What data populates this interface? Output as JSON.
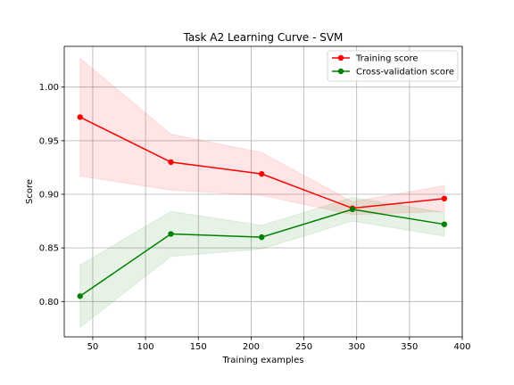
{
  "chart_data": {
    "type": "line",
    "title": "Task A2 Learning Curve - SVM",
    "xlabel": "Training examples",
    "ylabel": "Score",
    "xlim": [
      23,
      400
    ],
    "ylim": [
      0.767,
      1.038
    ],
    "xticks": [
      50,
      100,
      150,
      200,
      250,
      300,
      350,
      400
    ],
    "yticks": [
      0.8,
      0.85,
      0.9,
      0.95,
      1.0
    ],
    "grid": true,
    "legend_position": "top-right",
    "x": [
      38,
      124,
      210,
      296,
      383
    ],
    "series": [
      {
        "name": "Training score",
        "color": "#ff0000",
        "band_color": "#ff0000",
        "values": [
          0.972,
          0.93,
          0.919,
          0.887,
          0.896
        ],
        "upper": [
          1.027,
          0.956,
          0.939,
          0.893,
          0.908
        ],
        "lower": [
          0.917,
          0.904,
          0.899,
          0.881,
          0.884
        ]
      },
      {
        "name": "Cross-validation score",
        "color": "#008000",
        "band_color": "#008000",
        "values": [
          0.805,
          0.863,
          0.86,
          0.886,
          0.872
        ],
        "upper": [
          0.834,
          0.884,
          0.871,
          0.897,
          0.883
        ],
        "lower": [
          0.776,
          0.842,
          0.849,
          0.875,
          0.861
        ]
      }
    ]
  }
}
